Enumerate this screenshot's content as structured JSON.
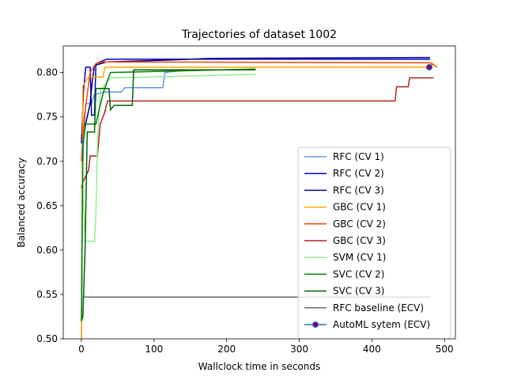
{
  "chart_data": {
    "type": "line",
    "title": "Trajectories of dataset 1002",
    "xlabel": "Wallclock time in seconds",
    "ylabel": "Balanced accuracy",
    "xlim": [
      -25,
      515
    ],
    "ylim": [
      0.5,
      0.83
    ],
    "xticks": [
      0,
      100,
      200,
      300,
      400,
      500
    ],
    "yticks": [
      0.5,
      0.55,
      0.6,
      0.65,
      0.7,
      0.75,
      0.8
    ],
    "ytick_labels": [
      "0.50",
      "0.55",
      "0.60",
      "0.65",
      "0.70",
      "0.75",
      "0.80"
    ],
    "grid": false,
    "legend_position": "lower-right",
    "series": [
      {
        "name": "RFC (CV 1)",
        "color": "#6495ED",
        "points": [
          [
            0,
            0.5
          ],
          [
            2,
            0.7
          ],
          [
            4,
            0.74
          ],
          [
            6,
            0.765
          ],
          [
            10,
            0.765
          ],
          [
            14,
            0.765
          ],
          [
            18,
            0.775
          ],
          [
            30,
            0.778
          ],
          [
            55,
            0.778
          ],
          [
            60,
            0.783
          ],
          [
            112,
            0.783
          ],
          [
            115,
            0.8
          ],
          [
            145,
            0.803
          ]
        ]
      },
      {
        "name": "RFC (CV 2)",
        "color": "#0000CD",
        "points": [
          [
            0,
            0.72
          ],
          [
            3,
            0.78
          ],
          [
            6,
            0.806
          ],
          [
            12,
            0.806
          ],
          [
            14,
            0.752
          ],
          [
            18,
            0.752
          ],
          [
            20,
            0.81
          ],
          [
            35,
            0.815
          ],
          [
            180,
            0.815
          ],
          [
            480,
            0.815
          ]
        ]
      },
      {
        "name": "RFC (CV 3)",
        "color": "#000080",
        "points": [
          [
            0,
            0.725
          ],
          [
            2,
            0.74
          ],
          [
            5,
            0.74
          ],
          [
            8,
            0.75
          ],
          [
            12,
            0.765
          ],
          [
            15,
            0.79
          ],
          [
            18,
            0.808
          ],
          [
            35,
            0.812
          ],
          [
            120,
            0.814
          ],
          [
            180,
            0.816
          ],
          [
            480,
            0.817
          ]
        ]
      },
      {
        "name": "GBC (CV 1)",
        "color": "#FFA500",
        "points": [
          [
            0,
            0.5
          ],
          [
            2,
            0.785
          ],
          [
            6,
            0.79
          ],
          [
            10,
            0.795
          ],
          [
            30,
            0.795
          ],
          [
            32,
            0.806
          ],
          [
            480,
            0.806
          ],
          [
            485,
            0.811
          ]
        ]
      },
      {
        "name": "GBC (CV 2)",
        "color": "#FF4500",
        "points": [
          [
            0,
            0.7
          ],
          [
            4,
            0.75
          ],
          [
            8,
            0.775
          ],
          [
            12,
            0.8
          ],
          [
            20,
            0.81
          ],
          [
            30,
            0.812
          ],
          [
            480,
            0.811
          ],
          [
            490,
            0.806
          ]
        ]
      },
      {
        "name": "GBC (CV 3)",
        "color": "#B22222",
        "points": [
          [
            0,
            0.67
          ],
          [
            4,
            0.68
          ],
          [
            10,
            0.69
          ],
          [
            12,
            0.706
          ],
          [
            22,
            0.706
          ],
          [
            26,
            0.742
          ],
          [
            32,
            0.755
          ],
          [
            36,
            0.768
          ],
          [
            432,
            0.768
          ],
          [
            434,
            0.784
          ],
          [
            450,
            0.784
          ],
          [
            452,
            0.794
          ],
          [
            485,
            0.794
          ]
        ]
      },
      {
        "name": "SVM (CV 1)",
        "color": "#90EE90",
        "points": [
          [
            0,
            0.55
          ],
          [
            2,
            0.68
          ],
          [
            5,
            0.61
          ],
          [
            18,
            0.61
          ],
          [
            20,
            0.64
          ],
          [
            22,
            0.72
          ],
          [
            26,
            0.78
          ],
          [
            40,
            0.794
          ],
          [
            240,
            0.798
          ]
        ]
      },
      {
        "name": "SVC (CV 2)",
        "color": "#008000",
        "points": [
          [
            0,
            0.52
          ],
          [
            2,
            0.72
          ],
          [
            6,
            0.742
          ],
          [
            20,
            0.742
          ],
          [
            25,
            0.76
          ],
          [
            30,
            0.777
          ],
          [
            40,
            0.8
          ],
          [
            240,
            0.804
          ]
        ]
      },
      {
        "name": "SVC (CV 3)",
        "color": "#006400",
        "points": [
          [
            0,
            0.52
          ],
          [
            2,
            0.525
          ],
          [
            5,
            0.6
          ],
          [
            8,
            0.733
          ],
          [
            18,
            0.733
          ],
          [
            20,
            0.782
          ],
          [
            38,
            0.782
          ],
          [
            40,
            0.758
          ],
          [
            45,
            0.763
          ],
          [
            70,
            0.763
          ],
          [
            72,
            0.803
          ],
          [
            240,
            0.803
          ]
        ]
      },
      {
        "name": "RFC baseline (ECV)",
        "color": "#696969",
        "points": [
          [
            0,
            0.547
          ],
          [
            480,
            0.547
          ]
        ]
      }
    ],
    "automl": {
      "name": "AutoML sytem (ECV)",
      "color": "#1f77b4",
      "marker_color": "#800080",
      "x": 479,
      "y": 0.806
    }
  }
}
